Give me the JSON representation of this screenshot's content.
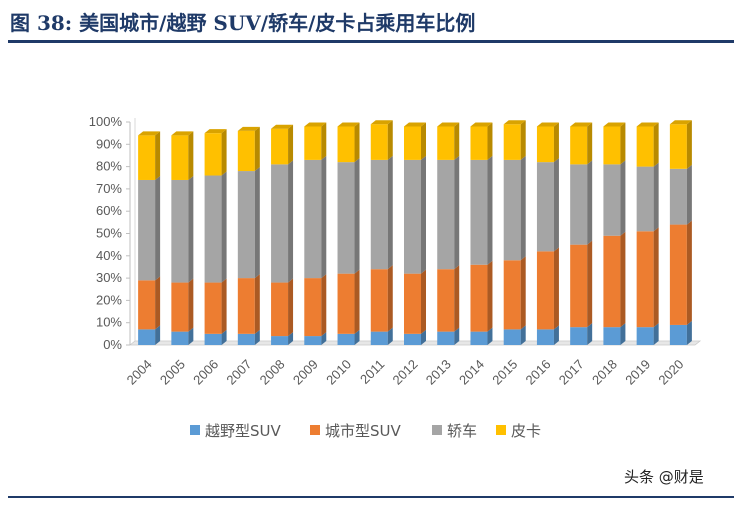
{
  "page": {
    "title": "图 38:  美国城市/越野 SUV/轿车/皮卡占乘用车比例",
    "watermark": "头条 @财是"
  },
  "chart_data": {
    "type": "bar",
    "stacked": true,
    "percent": true,
    "categories": [
      "2004",
      "2005",
      "2006",
      "2007",
      "2008",
      "2009",
      "2010",
      "2011",
      "2012",
      "2013",
      "2014",
      "2015",
      "2016",
      "2017",
      "2018",
      "2019",
      "2020"
    ],
    "series": [
      {
        "name": "越野型SUV",
        "color": "#5b9bd5",
        "values": [
          7,
          6,
          5,
          5,
          4,
          4,
          5,
          6,
          5,
          6,
          6,
          7,
          7,
          8,
          8,
          8,
          9
        ]
      },
      {
        "name": "城市型SUV",
        "color": "#ed7d31",
        "values": [
          22,
          22,
          23,
          25,
          24,
          26,
          27,
          28,
          27,
          28,
          30,
          31,
          35,
          37,
          41,
          43,
          45
        ]
      },
      {
        "name": "轿车",
        "color": "#a5a5a5",
        "values": [
          45,
          46,
          48,
          48,
          53,
          53,
          50,
          49,
          51,
          49,
          47,
          45,
          40,
          36,
          32,
          29,
          25
        ]
      },
      {
        "name": "皮卡",
        "color": "#ffc000",
        "values": [
          20,
          20,
          19,
          18,
          16,
          15,
          16,
          16,
          15,
          15,
          15,
          16,
          16,
          17,
          17,
          18,
          20
        ]
      }
    ],
    "y_ticks": [
      "0%",
      "10%",
      "20%",
      "30%",
      "40%",
      "50%",
      "60%",
      "70%",
      "80%",
      "90%",
      "100%"
    ],
    "ylim": [
      0,
      100
    ],
    "legend_position": "bottom",
    "grid": false
  }
}
